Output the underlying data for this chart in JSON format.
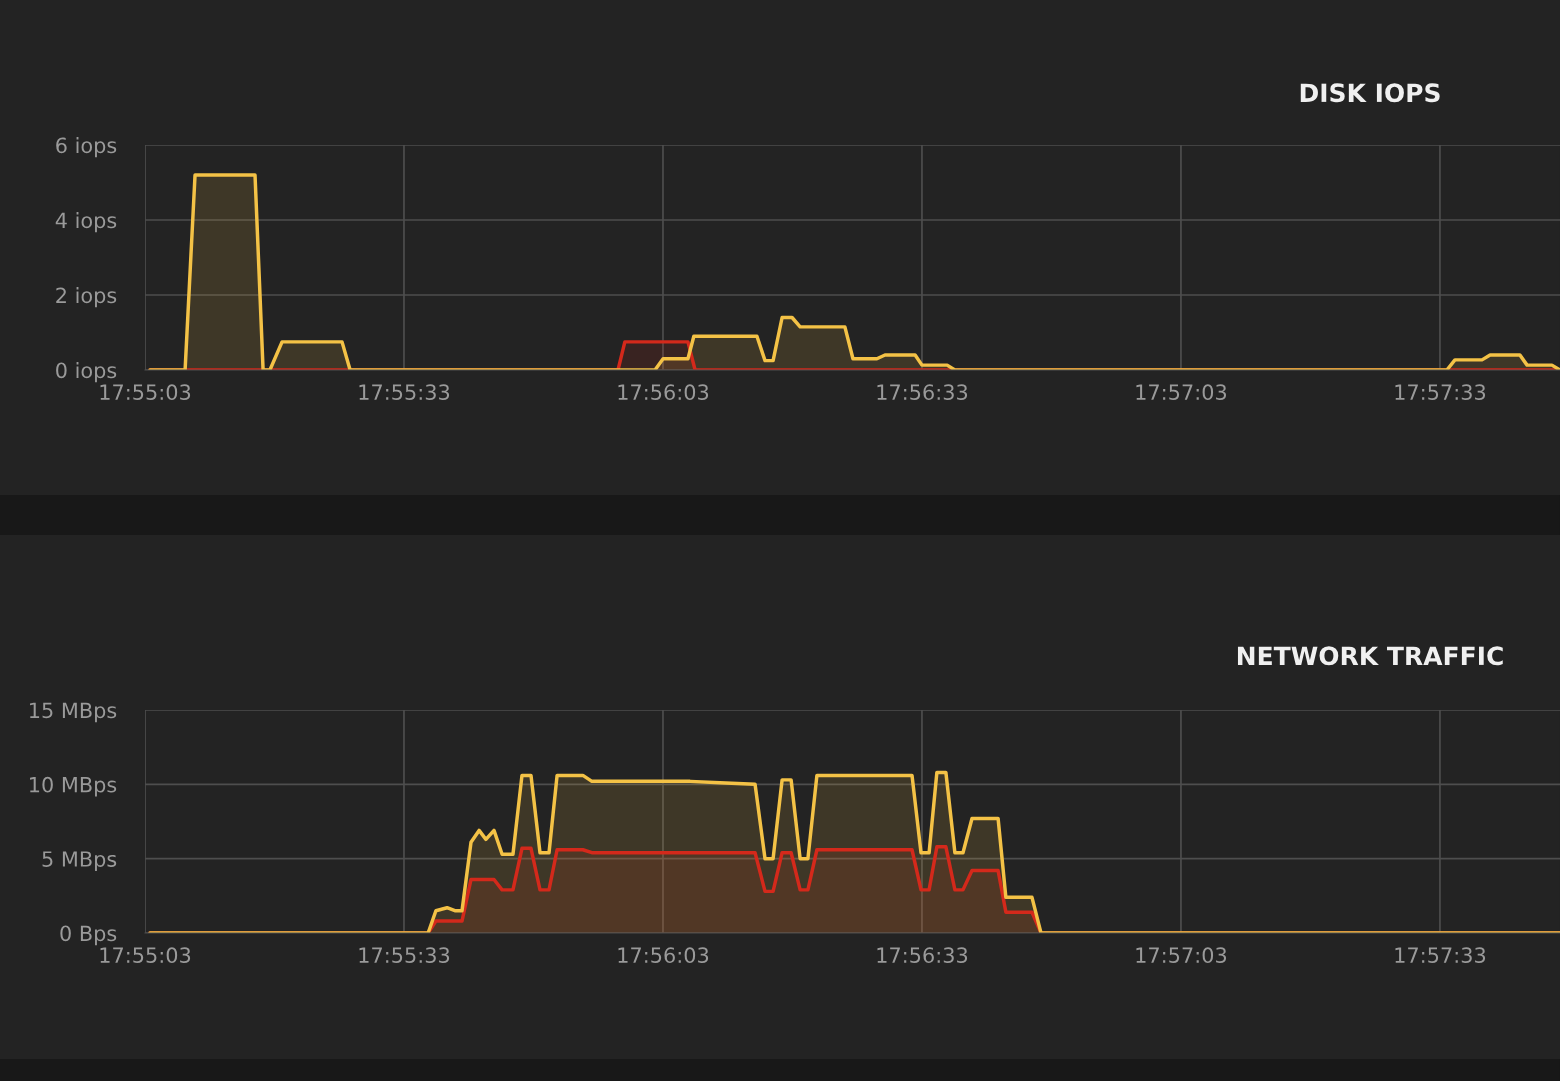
{
  "chart_data": [
    {
      "type": "area",
      "title": "DISK IOPS",
      "xlim": [
        17.9175,
        17.96303
      ],
      "ylim": [
        0,
        6
      ],
      "xticks": [
        {
          "value": 17.9175,
          "label": "17:55:03"
        },
        {
          "value": 17.925833,
          "label": "17:55:33"
        },
        {
          "value": 17.934167,
          "label": "17:56:03"
        },
        {
          "value": 17.9425,
          "label": "17:56:33"
        },
        {
          "value": 17.950833,
          "label": "17:57:03"
        },
        {
          "value": 17.959167,
          "label": "17:57:33"
        }
      ],
      "yticks": [
        {
          "value": 0,
          "label": "0 iops"
        },
        {
          "value": 2,
          "label": "2 iops"
        },
        {
          "value": 4,
          "label": "4 iops"
        },
        {
          "value": 6,
          "label": "6 iops"
        }
      ],
      "grid": true,
      "legend": false,
      "series": [
        {
          "color": "#d4291b",
          "x": [
            17.91766,
            17.93272,
            17.93294,
            17.93497,
            17.9352,
            17.96303
          ],
          "values": [
            0,
            0,
            0.75,
            0.75,
            0,
            0
          ]
        },
        {
          "color": "#f4c246",
          "x": [
            17.91766,
            17.91879,
            17.91911,
            17.92104,
            17.9213,
            17.92152,
            17.92191,
            17.92384,
            17.9241,
            17.93391,
            17.93417,
            17.93497,
            17.93516,
            17.93719,
            17.93745,
            17.93771,
            17.938,
            17.93832,
            17.93858,
            17.94002,
            17.94028,
            17.94105,
            17.94131,
            17.94228,
            17.9425,
            17.94331,
            17.94356,
            17.95939,
            17.95965,
            17.96052,
            17.96078,
            17.96174,
            17.96197,
            17.96277,
            17.96303
          ],
          "values": [
            0,
            0,
            5.2,
            5.2,
            0,
            0,
            0.75,
            0.75,
            0,
            0,
            0.3,
            0.3,
            0.9,
            0.9,
            0.25,
            0.25,
            1.4,
            1.4,
            1.15,
            1.15,
            0.3,
            0.3,
            0.4,
            0.4,
            0.13,
            0.13,
            0,
            0,
            0.27,
            0.27,
            0.4,
            0.4,
            0.13,
            0.13,
            0
          ]
        }
      ]
    },
    {
      "type": "area",
      "title": "NETWORK TRAFFIC",
      "xlim": [
        17.9175,
        17.96303
      ],
      "ylim": [
        0,
        15
      ],
      "xticks": [
        {
          "value": 17.9175,
          "label": "17:55:03"
        },
        {
          "value": 17.925833,
          "label": "17:55:33"
        },
        {
          "value": 17.934167,
          "label": "17:56:03"
        },
        {
          "value": 17.9425,
          "label": "17:56:33"
        },
        {
          "value": 17.950833,
          "label": "17:57:03"
        },
        {
          "value": 17.959167,
          "label": "17:57:33"
        }
      ],
      "yticks": [
        {
          "value": 0,
          "label": "0 Bps"
        },
        {
          "value": 5,
          "label": "5 MBps"
        },
        {
          "value": 10,
          "label": "10 MBps"
        },
        {
          "value": 15,
          "label": "15 MBps"
        }
      ],
      "grid": true,
      "legend": false,
      "series": [
        {
          "color": "#d4291b",
          "x": [
            17.91766,
            17.92661,
            17.92686,
            17.9277,
            17.92799,
            17.92873,
            17.92899,
            17.92934,
            17.92963,
            17.92992,
            17.93021,
            17.9305,
            17.93076,
            17.93159,
            17.93188,
            17.93713,
            17.93745,
            17.93771,
            17.938,
            17.93829,
            17.93858,
            17.93883,
            17.93912,
            17.94218,
            17.94247,
            17.94273,
            17.94298,
            17.94327,
            17.94356,
            17.94382,
            17.94411,
            17.94495,
            17.9452,
            17.94604,
            17.94633,
            17.96303
          ],
          "values": [
            0,
            0,
            0.8,
            0.8,
            3.6,
            3.6,
            2.9,
            2.9,
            5.7,
            5.7,
            2.9,
            2.9,
            5.6,
            5.6,
            5.4,
            5.4,
            2.8,
            2.8,
            5.4,
            5.4,
            2.9,
            2.9,
            5.6,
            5.6,
            2.9,
            2.9,
            5.8,
            5.8,
            2.9,
            2.9,
            4.2,
            4.2,
            1.4,
            1.4,
            0,
            0
          ]
        },
        {
          "color": "#f4c246",
          "x": [
            17.91766,
            17.92661,
            17.92686,
            17.92722,
            17.92747,
            17.9277,
            17.92799,
            17.92825,
            17.92847,
            17.92873,
            17.92899,
            17.92934,
            17.92963,
            17.92992,
            17.93021,
            17.9305,
            17.93076,
            17.93159,
            17.93188,
            17.93391,
            17.93504,
            17.936,
            17.93713,
            17.93745,
            17.93771,
            17.938,
            17.93829,
            17.93858,
            17.93883,
            17.93912,
            17.94218,
            17.94247,
            17.94273,
            17.94298,
            17.94327,
            17.94356,
            17.94382,
            17.94411,
            17.94495,
            17.9452,
            17.94604,
            17.94633,
            17.96303
          ],
          "values": [
            0,
            0,
            1.5,
            1.7,
            1.5,
            1.5,
            6.1,
            6.9,
            6.3,
            6.9,
            5.3,
            5.3,
            10.6,
            10.6,
            5.4,
            5.4,
            10.6,
            10.6,
            10.2,
            10.2,
            10.2,
            10.1,
            10.0,
            5.0,
            5.0,
            10.3,
            10.3,
            5.0,
            5.0,
            10.6,
            10.6,
            5.4,
            5.4,
            10.8,
            10.8,
            5.4,
            5.4,
            7.7,
            7.7,
            2.4,
            2.4,
            0,
            0
          ]
        }
      ]
    }
  ]
}
